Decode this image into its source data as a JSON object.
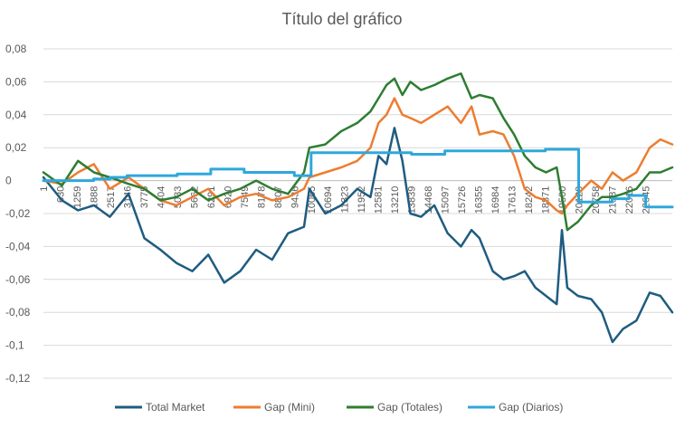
{
  "chart_data": {
    "type": "line",
    "title": "Título del gráfico",
    "xlabel": "",
    "ylabel": "",
    "ylim": [
      -0.12,
      0.08
    ],
    "yticks": [
      "0,08",
      "0,06",
      "0,04",
      "0,02",
      "0",
      "-0,02",
      "-0,04",
      "-0,06",
      "-0,08",
      "-0,1",
      "-0,12"
    ],
    "xticks": [
      "1",
      "630",
      "1259",
      "1888",
      "2517",
      "3146",
      "3775",
      "4404",
      "5033",
      "5662",
      "6291",
      "6920",
      "7549",
      "8178",
      "8807",
      "9436",
      "10065",
      "10694",
      "11323",
      "11952",
      "12581",
      "13210",
      "13839",
      "14468",
      "15097",
      "15726",
      "16355",
      "16984",
      "17613",
      "18242",
      "18871",
      "19500",
      "20129",
      "20758",
      "21387",
      "22016",
      "22645"
    ],
    "xlim": [
      1,
      23650
    ],
    "grid": true,
    "legend_position": "bottom",
    "series": [
      {
        "name": "Total Market",
        "color": "#1F5C80",
        "x": [
          1,
          700,
          1300,
          1900,
          2500,
          3200,
          3800,
          4400,
          5000,
          5600,
          6200,
          6800,
          7400,
          8000,
          8600,
          9200,
          9800,
          10000,
          10600,
          11200,
          11800,
          12300,
          12600,
          12900,
          13200,
          13500,
          13800,
          14200,
          14700,
          15200,
          15700,
          16100,
          16400,
          16900,
          17300,
          17700,
          18100,
          18500,
          18900,
          19300,
          19500,
          19700,
          20100,
          20600,
          21000,
          21400,
          21800,
          22300,
          22800,
          23200,
          23650
        ],
        "y": [
          0.002,
          -0.012,
          -0.018,
          -0.015,
          -0.022,
          -0.008,
          -0.035,
          -0.042,
          -0.05,
          -0.055,
          -0.045,
          -0.062,
          -0.055,
          -0.042,
          -0.048,
          -0.032,
          -0.028,
          -0.005,
          -0.02,
          -0.015,
          -0.005,
          -0.01,
          0.015,
          0.01,
          0.032,
          0.012,
          -0.02,
          -0.022,
          -0.015,
          -0.032,
          -0.04,
          -0.03,
          -0.035,
          -0.055,
          -0.06,
          -0.058,
          -0.055,
          -0.065,
          -0.07,
          -0.075,
          -0.03,
          -0.065,
          -0.07,
          -0.072,
          -0.08,
          -0.098,
          -0.09,
          -0.085,
          -0.068,
          -0.07,
          -0.08
        ]
      },
      {
        "name": "Gap (Mini)",
        "color": "#ED7D31",
        "x": [
          1,
          700,
          1300,
          1900,
          2500,
          3200,
          3800,
          4400,
          5000,
          5600,
          6200,
          6800,
          7400,
          8000,
          8600,
          9200,
          9800,
          10000,
          10600,
          11200,
          11800,
          12300,
          12600,
          12900,
          13200,
          13500,
          13800,
          14200,
          14700,
          15200,
          15700,
          16100,
          16400,
          16900,
          17300,
          17700,
          18100,
          18500,
          18900,
          19300,
          19500,
          19700,
          20100,
          20600,
          21000,
          21400,
          21800,
          22300,
          22800,
          23200,
          23650
        ],
        "y": [
          0.0,
          -0.002,
          0.005,
          0.01,
          -0.005,
          0.002,
          -0.005,
          -0.012,
          -0.015,
          -0.01,
          -0.005,
          -0.015,
          -0.01,
          -0.008,
          -0.012,
          -0.01,
          -0.005,
          0.002,
          0.005,
          0.008,
          0.012,
          0.02,
          0.035,
          0.04,
          0.05,
          0.04,
          0.038,
          0.035,
          0.04,
          0.045,
          0.035,
          0.045,
          0.028,
          0.03,
          0.028,
          0.015,
          -0.005,
          -0.01,
          -0.012,
          -0.018,
          -0.02,
          -0.015,
          -0.008,
          0.0,
          -0.005,
          0.005,
          0.0,
          0.005,
          0.02,
          0.025,
          0.022
        ]
      },
      {
        "name": "Gap (Totales)",
        "color": "#2E7D32",
        "x": [
          1,
          700,
          1300,
          1900,
          2500,
          3200,
          3800,
          4400,
          5000,
          5600,
          6200,
          6800,
          7400,
          8000,
          8600,
          9200,
          9800,
          10000,
          10600,
          11200,
          11800,
          12300,
          12600,
          12900,
          13200,
          13500,
          13800,
          14200,
          14700,
          15200,
          15700,
          16100,
          16400,
          16900,
          17300,
          17700,
          18100,
          18500,
          18900,
          19300,
          19500,
          19700,
          20100,
          20600,
          21000,
          21400,
          21800,
          22300,
          22800,
          23200,
          23650
        ],
        "y": [
          0.005,
          -0.003,
          0.012,
          0.005,
          0.002,
          -0.002,
          -0.005,
          -0.012,
          -0.01,
          -0.005,
          -0.012,
          -0.008,
          -0.005,
          0.0,
          -0.005,
          -0.008,
          0.005,
          0.02,
          0.022,
          0.03,
          0.035,
          0.042,
          0.05,
          0.058,
          0.062,
          0.052,
          0.06,
          0.055,
          0.058,
          0.062,
          0.065,
          0.05,
          0.052,
          0.05,
          0.038,
          0.028,
          0.015,
          0.008,
          0.005,
          0.008,
          -0.01,
          -0.03,
          -0.025,
          -0.015,
          -0.01,
          -0.01,
          -0.008,
          -0.005,
          0.005,
          0.005,
          0.008
        ]
      },
      {
        "name": "Gap (Diarios)",
        "color": "#2EA8DB",
        "x": [
          1,
          1888,
          2517,
          3146,
          3775,
          4404,
          5033,
          5662,
          6291,
          7549,
          8178,
          9436,
          10065,
          11323,
          12581,
          13839,
          15097,
          16355,
          18242,
          18871,
          19500,
          20129,
          21387,
          22016,
          22645,
          23650
        ],
        "y": [
          0.0,
          0.001,
          0.002,
          0.003,
          0.003,
          0.003,
          0.004,
          0.004,
          0.007,
          0.005,
          0.005,
          0.003,
          0.017,
          0.017,
          0.017,
          0.016,
          0.018,
          0.018,
          0.018,
          0.019,
          0.019,
          -0.013,
          -0.011,
          -0.009,
          -0.016,
          -0.016
        ]
      }
    ]
  }
}
